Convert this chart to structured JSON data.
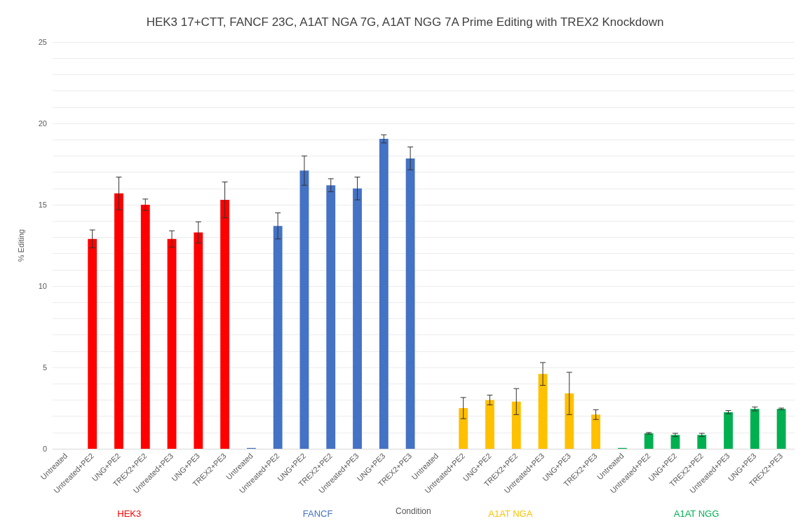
{
  "chart_data": {
    "type": "bar",
    "title": "HEK3 17+CTT, FANCF 23C, A1AT NGA 7G, A1AT NGG 7A Prime Editing with TREX2 Knockdown",
    "xlabel": "Condition",
    "ylabel": "% Editing",
    "categories": [
      "Untreated",
      "Untreated+PE2",
      "UNG+PE2",
      "TREX2+PE2",
      "Untreated+PE3",
      "UNG+PE3",
      "TREX2+PE3",
      "Untreated",
      "Untreated+PE2",
      "UNG+PE2",
      "TREX2+PE2",
      "Untreated+PE3",
      "UNG+PE3",
      "TREX2+PE3",
      "Untreated",
      "Untreated+PE2",
      "UNG+PE2",
      "TREX2+PE2",
      "Untreated+PE3",
      "UNG+PE3",
      "TREX2+PE3",
      "Untreated",
      "Untreated+PE2",
      "UNG+PE2",
      "TREX2+PE2",
      "Untreated+PE3",
      "UNG+PE3",
      "TREX2+PE3"
    ],
    "series": [
      {
        "name": "HEK3",
        "color": "#ff0000",
        "values": [
          0,
          12.9,
          15.7,
          15.0,
          12.9,
          13.3,
          15.3,
          null,
          null,
          null,
          null,
          null,
          null,
          null,
          null,
          null,
          null,
          null,
          null,
          null,
          null,
          null,
          null,
          null,
          null,
          null,
          null,
          null
        ],
        "errors": [
          null,
          0.55,
          1.0,
          0.35,
          0.5,
          0.65,
          1.1,
          null,
          null,
          null,
          null,
          null,
          null,
          null,
          null,
          null,
          null,
          null,
          null,
          null,
          null,
          null,
          null,
          null,
          null,
          null,
          null,
          null
        ]
      },
      {
        "name": "FANCF",
        "color": "#4472c4",
        "values": [
          null,
          null,
          null,
          null,
          null,
          null,
          null,
          0.05,
          13.7,
          17.1,
          16.2,
          16.0,
          19.05,
          17.85,
          null,
          null,
          null,
          null,
          null,
          null,
          null,
          null,
          null,
          null,
          null,
          null,
          null,
          null
        ],
        "errors": [
          null,
          null,
          null,
          null,
          null,
          null,
          null,
          null,
          0.8,
          0.9,
          0.4,
          0.7,
          0.25,
          0.7,
          null,
          null,
          null,
          null,
          null,
          null,
          null,
          null,
          null,
          null,
          null,
          null,
          null,
          null
        ]
      },
      {
        "name": "A1AT NGA",
        "color": "#ffc000",
        "values": [
          null,
          null,
          null,
          null,
          null,
          null,
          null,
          null,
          null,
          null,
          null,
          null,
          null,
          null,
          0,
          2.5,
          3.0,
          2.9,
          4.6,
          3.4,
          2.1,
          null,
          null,
          null,
          null,
          null,
          null,
          null
        ],
        "errors": [
          null,
          null,
          null,
          null,
          null,
          null,
          null,
          null,
          null,
          null,
          null,
          null,
          null,
          null,
          null,
          0.65,
          0.3,
          0.8,
          0.7,
          1.3,
          0.3,
          null,
          null,
          null,
          null,
          null,
          null,
          null
        ]
      },
      {
        "name": "A1AT NGG",
        "color": "#00b050",
        "values": [
          null,
          null,
          null,
          null,
          null,
          null,
          null,
          null,
          null,
          null,
          null,
          null,
          null,
          null,
          null,
          null,
          null,
          null,
          null,
          null,
          null,
          0.05,
          0.95,
          0.85,
          0.85,
          2.25,
          2.45,
          2.45
        ],
        "errors": [
          null,
          null,
          null,
          null,
          null,
          null,
          null,
          null,
          null,
          null,
          null,
          null,
          null,
          null,
          null,
          null,
          null,
          null,
          null,
          null,
          null,
          null,
          0.05,
          0.1,
          0.1,
          0.1,
          0.12,
          0.05
        ]
      }
    ],
    "ylim": [
      0,
      25
    ],
    "yticks": [
      0,
      {
        "value": 1,
        "label": null
      },
      {
        "value": 2,
        "label": null
      },
      {
        "value": 3,
        "label": null
      },
      {
        "value": 4,
        "label": null
      },
      5,
      {
        "value": 6,
        "label": null
      },
      {
        "value": 7,
        "label": null
      },
      {
        "value": 8,
        "label": null
      },
      {
        "value": 9,
        "label": null
      },
      10,
      {
        "value": 11,
        "label": null
      },
      {
        "value": 12,
        "label": null
      },
      {
        "value": 13,
        "label": null
      },
      {
        "value": 14,
        "label": null
      },
      15,
      {
        "value": 16,
        "label": null
      },
      {
        "value": 17,
        "label": null
      },
      {
        "value": 18,
        "label": null
      },
      {
        "value": 19,
        "label": null
      },
      20,
      {
        "value": 21,
        "label": null
      },
      {
        "value": 22,
        "label": null
      },
      {
        "value": 23,
        "label": null
      },
      {
        "value": 24,
        "label": null
      },
      25
    ],
    "grid": "y",
    "legend": false
  }
}
